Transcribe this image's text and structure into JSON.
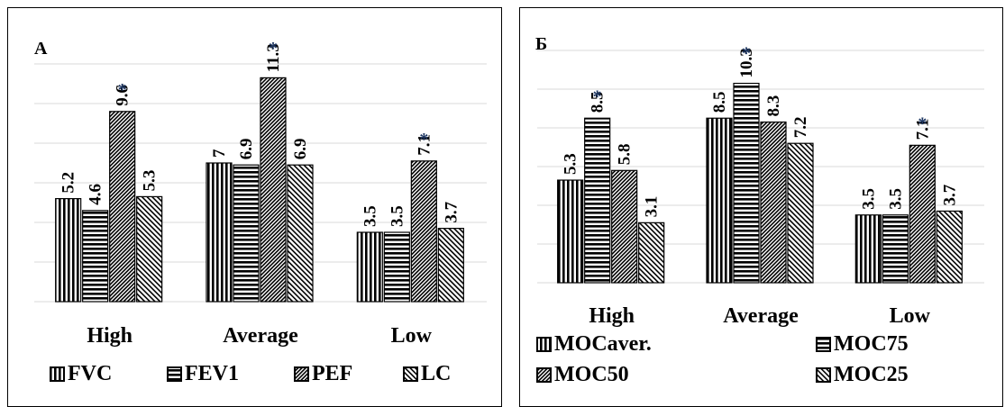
{
  "colors": {
    "bar_stroke": "#000000",
    "grid": "#d9d9d9",
    "star": "#1f3864"
  },
  "chart_data": [
    {
      "type": "bar",
      "panel_label": "A",
      "categories": [
        "High",
        "Average",
        "Low"
      ],
      "ylim": [
        0,
        12
      ],
      "grid": true,
      "legend": "bottom",
      "series": [
        {
          "name": "FVC",
          "pattern": "vertical",
          "values": [
            5.2,
            7,
            3.5
          ],
          "labels": [
            "5.2",
            "7",
            "3.5"
          ],
          "starred": [
            false,
            false,
            false
          ]
        },
        {
          "name": "FEV1",
          "pattern": "horizontal",
          "values": [
            4.6,
            6.9,
            3.5
          ],
          "labels": [
            "4.6",
            "6.9",
            "3.5"
          ],
          "starred": [
            false,
            false,
            false
          ]
        },
        {
          "name": "PEF",
          "pattern": "diagonal-dense",
          "values": [
            9.6,
            11.3,
            7.1
          ],
          "labels": [
            "9.6",
            "11.3",
            "7.1"
          ],
          "starred": [
            true,
            true,
            true
          ]
        },
        {
          "name": "LC",
          "pattern": "diagonal",
          "values": [
            5.3,
            6.9,
            3.7
          ],
          "labels": [
            "5.3",
            "6.9",
            "3.7"
          ],
          "starred": [
            false,
            false,
            false
          ]
        }
      ],
      "star_symbol": "*"
    },
    {
      "type": "bar",
      "panel_label": "Б",
      "categories": [
        "High",
        "Average",
        "Low"
      ],
      "ylim": [
        0,
        12
      ],
      "grid": true,
      "legend": "bottom",
      "series": [
        {
          "name": "MOCaver.",
          "pattern": "vertical",
          "values": [
            5.3,
            8.5,
            3.5
          ],
          "labels": [
            "5.3",
            "8.5",
            "3.5"
          ],
          "starred": [
            false,
            false,
            false
          ]
        },
        {
          "name": "MOC75",
          "pattern": "horizontal",
          "values": [
            8.5,
            10.3,
            3.5
          ],
          "labels": [
            "8.5",
            "10.3",
            "3.5"
          ],
          "starred": [
            true,
            true,
            false
          ]
        },
        {
          "name": "MOC50",
          "pattern": "diagonal-dense",
          "values": [
            5.8,
            8.3,
            7.1
          ],
          "labels": [
            "5.8",
            "8.3",
            "7.1"
          ],
          "starred": [
            false,
            false,
            true
          ]
        },
        {
          "name": "MOC25",
          "pattern": "diagonal",
          "values": [
            3.1,
            7.2,
            3.7
          ],
          "labels": [
            "3.1",
            "7.2",
            "3.7"
          ],
          "starred": [
            false,
            false,
            false
          ]
        }
      ],
      "star_symbol": "*"
    }
  ]
}
